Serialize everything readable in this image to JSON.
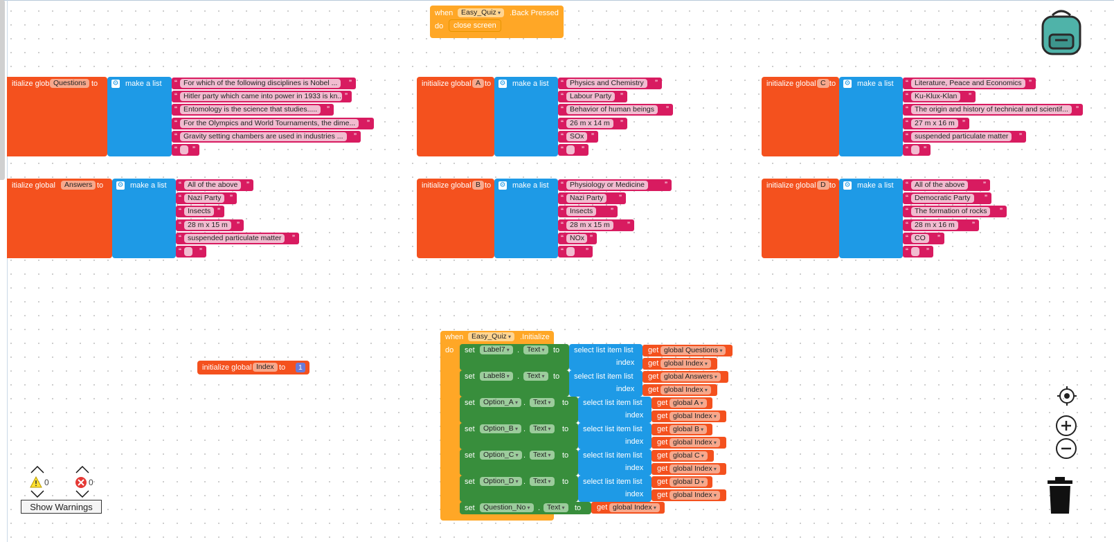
{
  "back_pressed": {
    "when": "when",
    "component": "Easy_Quiz",
    "event": ".Back Pressed",
    "do": "do",
    "action": "close screen"
  },
  "global_blocks": [
    {
      "init": "initialize global",
      "name": "Questions",
      "to": "to",
      "make": "make a list",
      "items": [
        "For which of the following disciplines is Nobel ...",
        "Hitler party which came into power in 1933 is kn...",
        "Entomology is the science that studies.....",
        "For the Olympics and World Tournaments, the dime...",
        "Gravity setting chambers are used in industries ...",
        ""
      ]
    },
    {
      "init": "initialize global",
      "name": "A",
      "to": "to",
      "make": "make a list",
      "items": [
        "Physics and Chemistry",
        "Labour Party",
        "Behavior of human beings",
        "26 m x 14 m",
        "SOx",
        ""
      ]
    },
    {
      "init": "initialize global",
      "name": "C",
      "to": "to",
      "make": "make a list",
      "items": [
        "Literature, Peace and Economics",
        "Ku-Klux-Klan",
        "The origin and history of technical and scientif...",
        "27 m x 16 m",
        "suspended particulate matter",
        ""
      ]
    },
    {
      "init": "initialize global",
      "name": "Answers",
      "to": "to",
      "make": "make a list",
      "items": [
        "All of the above",
        "Nazi Party",
        "Insects",
        "28 m x 15 m",
        "suspended particulate matter",
        ""
      ]
    },
    {
      "init": "initialize global",
      "name": "B",
      "to": "to",
      "make": "make a list",
      "items": [
        "Physiology or Medicine",
        "Nazi Party",
        "Insects",
        "28 m x 15 m",
        "NOx",
        ""
      ]
    },
    {
      "init": "initialize global",
      "name": "D",
      "to": "to",
      "make": "make a list",
      "items": [
        "All of the above",
        "Democratic Party",
        "The formation of rocks",
        "28 m x 16 m",
        "CO",
        ""
      ]
    }
  ],
  "index_block": {
    "init": "initialize global",
    "name": "Index",
    "to": "to",
    "value": "1"
  },
  "initialize_event": {
    "when": "when",
    "component": "Easy_Quiz",
    "event": ".Initialize",
    "do": "do",
    "rows": [
      {
        "set": "set",
        "comp": "Label7",
        "prop": "Text",
        "to": "to",
        "select": "select list item  list",
        "index": "index",
        "get": "get",
        "list": "global Questions",
        "idx": "global Index"
      },
      {
        "set": "set",
        "comp": "Label8",
        "prop": "Text",
        "to": "to",
        "select": "select list item  list",
        "index": "index",
        "get": "get",
        "list": "global Answers",
        "idx": "global Index"
      },
      {
        "set": "set",
        "comp": "Option_A",
        "prop": "Text",
        "to": "to",
        "select": "select list item  list",
        "index": "index",
        "get": "get",
        "list": "global A",
        "idx": "global Index"
      },
      {
        "set": "set",
        "comp": "Option_B",
        "prop": "Text",
        "to": "to",
        "select": "select list item  list",
        "index": "index",
        "get": "get",
        "list": "global B",
        "idx": "global Index"
      },
      {
        "set": "set",
        "comp": "Option_C",
        "prop": "Text",
        "to": "to",
        "select": "select list item  list",
        "index": "index",
        "get": "get",
        "list": "global C",
        "idx": "global Index"
      },
      {
        "set": "set",
        "comp": "Option_D",
        "prop": "Text",
        "to": "to",
        "select": "select list item  list",
        "index": "index",
        "get": "get",
        "list": "global D",
        "idx": "global Index"
      }
    ],
    "last": {
      "set": "set",
      "comp": "Question_No",
      "prop": "Text",
      "to": "to",
      "get": "get",
      "val": "global Index"
    }
  },
  "warnings": {
    "warning_count": "0",
    "error_count": "0",
    "button": "Show Warnings"
  },
  "colors": {
    "orange": "#f4511e",
    "blue": "#1e9ae6",
    "pink": "#d81b60",
    "green": "#388e3c",
    "gold": "#ffa726"
  }
}
